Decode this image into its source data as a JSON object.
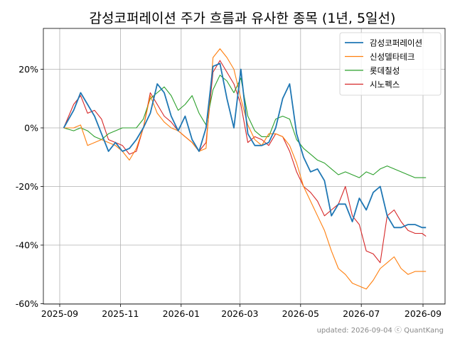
{
  "chart_data": {
    "type": "line",
    "title": "감성코퍼레이션 주가 흐름과 유사한 종목 (1년, 5일선)",
    "xlabel": "",
    "ylabel": "",
    "x_ticks": [
      "2025-09",
      "2025-11",
      "2026-01",
      "2026-03",
      "2026-05",
      "2026-07",
      "2026-09"
    ],
    "y_ticks": [
      "20%",
      "0%",
      "-20%",
      "-40%",
      "-60%"
    ],
    "ylim": [
      -60,
      33
    ],
    "grid": true,
    "legend_position": "top-right",
    "footer": "updated: 2026-09-04 ⓒ QuantKang",
    "x": [
      "2025-09-05",
      "2025-09-15",
      "2025-09-22",
      "2025-09-29",
      "2025-10-06",
      "2025-10-13",
      "2025-10-20",
      "2025-10-27",
      "2025-11-03",
      "2025-11-10",
      "2025-11-17",
      "2025-11-24",
      "2025-12-01",
      "2025-12-08",
      "2025-12-15",
      "2025-12-22",
      "2025-12-29",
      "2026-01-05",
      "2026-01-12",
      "2026-01-19",
      "2026-01-26",
      "2026-02-02",
      "2026-02-09",
      "2026-02-16",
      "2026-02-23",
      "2026-03-02",
      "2026-03-09",
      "2026-03-16",
      "2026-03-23",
      "2026-03-30",
      "2026-04-06",
      "2026-04-13",
      "2026-04-20",
      "2026-04-27",
      "2026-05-04",
      "2026-05-11",
      "2026-05-18",
      "2026-05-25",
      "2026-06-01",
      "2026-06-08",
      "2026-06-15",
      "2026-06-22",
      "2026-06-29",
      "2026-07-06",
      "2026-07-13",
      "2026-07-20",
      "2026-07-27",
      "2026-08-03",
      "2026-08-10",
      "2026-08-17",
      "2026-08-24",
      "2026-08-31",
      "2026-09-04"
    ],
    "series": [
      {
        "name": "감성코퍼레이션",
        "color": "#1f77b4",
        "values": [
          0,
          6,
          12,
          8,
          4,
          -2,
          -8,
          -5,
          -8,
          -7,
          -4,
          0,
          5,
          15,
          12,
          4,
          -1,
          4,
          -4,
          -8,
          0,
          21,
          22,
          10,
          0,
          20,
          -2,
          -6,
          -6,
          -5,
          0,
          10,
          15,
          -2,
          -10,
          -15,
          -14,
          -18,
          -30,
          -26,
          -26,
          -32,
          -24,
          -28,
          -22,
          -20,
          -30,
          -34,
          -34,
          -33,
          -33,
          -34,
          -34
        ]
      },
      {
        "name": "신성델타테크",
        "color": "#ff7f0e",
        "values": [
          0,
          0,
          1,
          -6,
          -5,
          -4,
          -5,
          -6,
          -8,
          -11,
          -7,
          0,
          11,
          5,
          2,
          0,
          -1,
          -3,
          -5,
          -8,
          -7,
          24,
          27,
          24,
          20,
          10,
          1,
          -4,
          -6,
          -2,
          -2,
          -3,
          -6,
          -12,
          -20,
          -25,
          -30,
          -35,
          -42,
          -48,
          -50,
          -53,
          -54,
          -55,
          -52,
          -48,
          -46,
          -44,
          -48,
          -50,
          -49,
          -49,
          -49
        ]
      },
      {
        "name": "롯데칠성",
        "color": "#2ca02c",
        "values": [
          0,
          -1,
          0,
          -1,
          -3,
          -4,
          -2,
          -1,
          0,
          0,
          0,
          3,
          10,
          12,
          14,
          11,
          6,
          8,
          11,
          5,
          1,
          13,
          18,
          16,
          12,
          17,
          4,
          -1,
          -3,
          -3,
          3,
          4,
          3,
          -4,
          -7,
          -9,
          -11,
          -12,
          -14,
          -16,
          -15,
          -16,
          -17,
          -15,
          -16,
          -14,
          -13,
          -14,
          -15,
          -16,
          -17,
          -17,
          -17
        ]
      },
      {
        "name": "시노펙스",
        "color": "#d62728",
        "values": [
          0,
          8,
          11,
          5,
          6,
          3,
          -4,
          -5,
          -6,
          -9,
          -8,
          0,
          12,
          8,
          4,
          2,
          -1,
          -3,
          -5,
          -8,
          -5,
          19,
          23,
          19,
          15,
          8,
          -5,
          -3,
          -4,
          -6,
          -2,
          -3,
          -8,
          -15,
          -20,
          -22,
          -25,
          -30,
          -28,
          -26,
          -20,
          -30,
          -33,
          -42,
          -43,
          -46,
          -30,
          -28,
          -32,
          -35,
          -36,
          -36,
          -37
        ]
      }
    ]
  }
}
